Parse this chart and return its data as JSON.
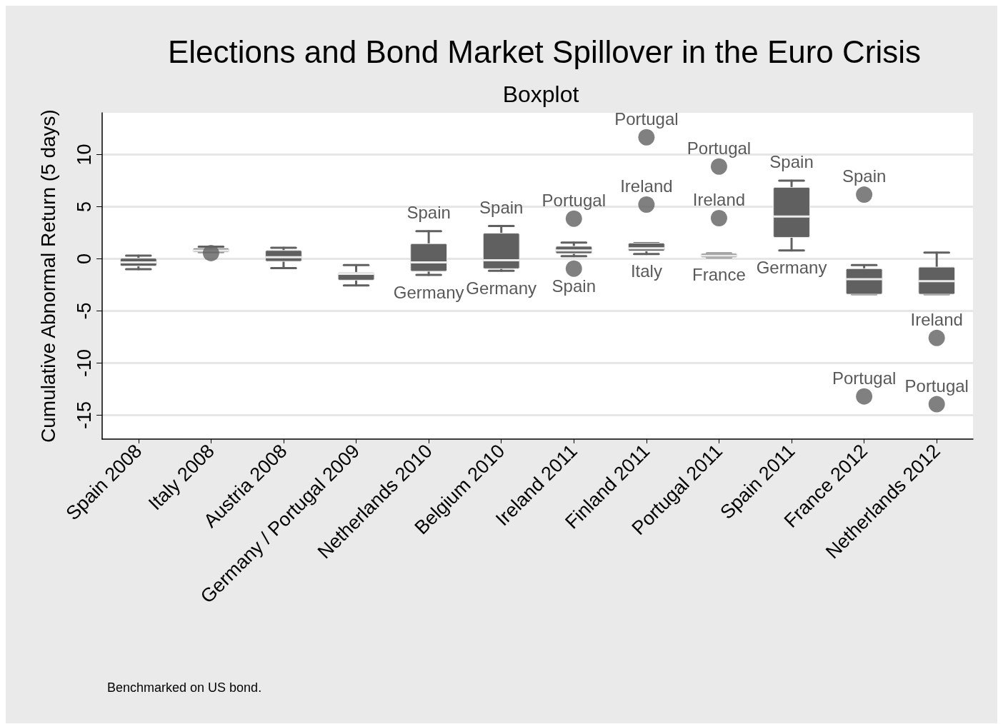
{
  "chart_data": {
    "type": "box",
    "title": "Elections and Bond Market Spillover in the Euro Crisis",
    "subtitle": "Boxplot",
    "ylabel": "Cumulative Abnormal Return (5 days)",
    "categories": [
      "Spain 2008",
      "Italy 2008",
      "Austria 2008",
      "Germany / Portugal 2009",
      "Netherlands 2010",
      "Belgium 2010",
      "Ireland 2011",
      "Finland 2011",
      "Portugal 2011",
      "Spain 2011",
      "France 2012",
      "Netherlands 2012"
    ],
    "series": [
      {
        "color": "#606060",
        "boxes": [
          {
            "low": -1.0,
            "q1": -0.7,
            "median": -0.35,
            "q3": 0.05,
            "high": 0.3
          },
          {
            "low": 0.65,
            "q1": 0.65,
            "median": 0.8,
            "q3": 1.0,
            "high": 1.15
          },
          {
            "low": -0.9,
            "q1": -0.25,
            "median": 0.15,
            "q3": 0.8,
            "high": 1.05
          },
          {
            "low": -2.55,
            "q1": -2.05,
            "median": -1.45,
            "q3": -1.3,
            "high": -0.6
          },
          {
            "low": -1.55,
            "q1": -1.2,
            "median": -0.35,
            "q3": 1.45,
            "high": 2.65
          },
          {
            "low": -1.15,
            "q1": -0.95,
            "median": -0.15,
            "q3": 2.45,
            "high": 3.15
          },
          {
            "low": 0.25,
            "q1": 0.5,
            "median": 0.8,
            "q3": 1.2,
            "high": 1.55
          },
          {
            "low": 0.45,
            "q1": 0.75,
            "median": 1.0,
            "q3": 1.5,
            "high": 1.5
          },
          {
            "low": 0.15,
            "q1": 0.15,
            "median": 0.3,
            "q3": 0.5,
            "high": 0.5
          },
          {
            "low": 0.8,
            "q1": 2.05,
            "median": 4.05,
            "q3": 6.85,
            "high": 7.5
          },
          {
            "low": -3.4,
            "q1": -3.4,
            "median": -1.95,
            "q3": -0.95,
            "high": -0.6
          },
          {
            "low": -3.4,
            "q1": -3.4,
            "median": -2.15,
            "q3": -0.8,
            "high": 0.6
          }
        ]
      },
      {
        "type": "scatter",
        "color": "#606060",
        "x": [
          "Italy 2008",
          "Ireland 2011",
          "Ireland 2011",
          "Finland 2011",
          "Finland 2011",
          "Portugal 2011",
          "Portugal 2011",
          "France 2012",
          "France 2012",
          "Netherlands 2012",
          "Netherlands 2012"
        ],
        "values": [
          0.55,
          3.85,
          -0.95,
          11.65,
          5.2,
          8.85,
          3.9,
          6.15,
          -13.2,
          -7.6,
          -13.95
        ]
      }
    ],
    "ylim": [
      -17.3,
      14
    ],
    "yticks": [
      -15,
      -10,
      -5,
      0,
      5,
      10
    ],
    "grid": "y",
    "annotations": [
      {
        "text": "Spain",
        "x": "Netherlands 2010",
        "y": 2.65
      },
      {
        "text": "Germany",
        "x": "Netherlands 2010",
        "y": -1.55
      },
      {
        "text": "Spain",
        "x": "Belgium 2010",
        "y": 3.15
      },
      {
        "text": "Germany",
        "x": "Belgium 2010",
        "y": -1.15
      },
      {
        "text": "Portugal",
        "x": "Ireland 2011",
        "y": 3.85
      },
      {
        "text": "Spain",
        "x": "Ireland 2011",
        "y": -0.95
      },
      {
        "text": "Portugal",
        "x": "Finland 2011",
        "y": 11.65
      },
      {
        "text": "Ireland",
        "x": "Finland 2011",
        "y": 5.2
      },
      {
        "text": "Italy",
        "x": "Finland 2011",
        "y": 0.45
      },
      {
        "text": "Portugal",
        "x": "Portugal 2011",
        "y": 8.85
      },
      {
        "text": "Ireland",
        "x": "Portugal 2011",
        "y": 3.9
      },
      {
        "text": "France",
        "x": "Portugal 2011",
        "y": 0.15
      },
      {
        "text": "Spain",
        "x": "Spain 2011",
        "y": 7.5
      },
      {
        "text": "Germany",
        "x": "Spain 2011",
        "y": 0.8
      },
      {
        "text": "Spain",
        "x": "France 2012",
        "y": 6.15
      },
      {
        "text": "Portugal",
        "x": "France 2012",
        "y": -13.2
      },
      {
        "text": "Ireland",
        "x": "Netherlands 2012",
        "y": -7.6
      },
      {
        "text": "Portugal",
        "x": "Netherlands 2012",
        "y": -13.95
      },
      "Benchmarked on US bond."
    ]
  }
}
